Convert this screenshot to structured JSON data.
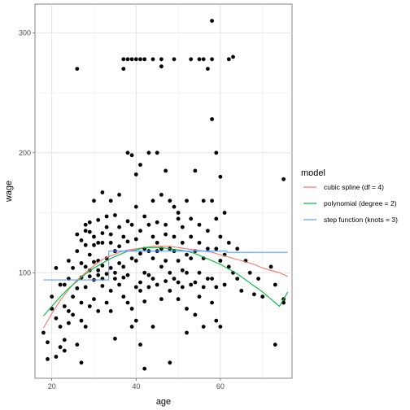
{
  "chart_data": {
    "type": "scatter",
    "xlabel": "age",
    "ylabel": "wage",
    "xlim": [
      16,
      77
    ],
    "ylim": [
      12,
      324
    ],
    "x_ticks": [
      20,
      40,
      60
    ],
    "y_ticks": [
      100,
      200,
      300
    ],
    "grid": true,
    "legend_position": "right",
    "legend_title": "model",
    "points": [
      [
        18,
        50
      ],
      [
        19,
        42
      ],
      [
        19,
        28
      ],
      [
        20,
        70
      ],
      [
        20,
        80
      ],
      [
        21,
        62
      ],
      [
        21,
        30
      ],
      [
        21,
        104
      ],
      [
        22,
        90
      ],
      [
        22,
        55
      ],
      [
        22,
        38
      ],
      [
        23,
        44
      ],
      [
        23,
        90
      ],
      [
        23,
        72
      ],
      [
        23,
        35
      ],
      [
        24,
        68
      ],
      [
        24,
        95
      ],
      [
        24,
        110
      ],
      [
        24,
        58
      ],
      [
        25,
        80
      ],
      [
        25,
        104
      ],
      [
        25,
        65
      ],
      [
        26,
        132
      ],
      [
        26,
        87
      ],
      [
        26,
        118
      ],
      [
        26,
        270
      ],
      [
        26,
        40
      ],
      [
        27,
        96
      ],
      [
        27,
        60
      ],
      [
        27,
        25
      ],
      [
        27,
        108
      ],
      [
        27,
        127
      ],
      [
        27,
        75
      ],
      [
        28,
        55
      ],
      [
        28,
        88
      ],
      [
        28,
        123
      ],
      [
        28,
        135
      ],
      [
        28,
        105
      ],
      [
        28,
        140
      ],
      [
        29,
        97
      ],
      [
        29,
        134
      ],
      [
        29,
        102
      ],
      [
        29,
        115
      ],
      [
        29,
        72
      ],
      [
        29,
        142
      ],
      [
        30,
        94
      ],
      [
        30,
        123
      ],
      [
        30,
        160
      ],
      [
        30,
        78
      ],
      [
        30,
        109
      ],
      [
        30,
        130
      ],
      [
        31,
        102
      ],
      [
        31,
        125
      ],
      [
        31,
        144
      ],
      [
        31,
        98
      ],
      [
        31,
        68
      ],
      [
        31,
        110
      ],
      [
        32,
        106
      ],
      [
        32,
        133
      ],
      [
        32,
        167
      ],
      [
        32,
        89
      ],
      [
        32,
        125
      ],
      [
        32,
        95
      ],
      [
        33,
        112
      ],
      [
        33,
        138
      ],
      [
        33,
        99
      ],
      [
        33,
        147
      ],
      [
        33,
        75
      ],
      [
        34,
        104
      ],
      [
        34,
        160
      ],
      [
        34,
        125
      ],
      [
        34,
        132
      ],
      [
        34,
        85
      ],
      [
        34,
        68
      ],
      [
        35,
        100
      ],
      [
        35,
        148
      ],
      [
        35,
        118
      ],
      [
        35,
        95
      ],
      [
        35,
        118
      ],
      [
        35,
        45
      ],
      [
        36,
        165
      ],
      [
        36,
        108
      ],
      [
        36,
        90
      ],
      [
        36,
        122
      ],
      [
        36,
        138
      ],
      [
        37,
        278
      ],
      [
        37,
        270
      ],
      [
        37,
        130
      ],
      [
        37,
        96
      ],
      [
        37,
        80
      ],
      [
        37,
        105
      ],
      [
        38,
        278
      ],
      [
        38,
        126
      ],
      [
        38,
        200
      ],
      [
        38,
        98
      ],
      [
        38,
        75
      ],
      [
        38,
        143
      ],
      [
        39,
        278
      ],
      [
        39,
        112
      ],
      [
        39,
        198
      ],
      [
        39,
        140
      ],
      [
        39,
        70
      ],
      [
        39,
        55
      ],
      [
        40,
        278
      ],
      [
        40,
        110
      ],
      [
        40,
        128
      ],
      [
        40,
        88
      ],
      [
        40,
        155
      ],
      [
        40,
        182
      ],
      [
        40,
        60
      ],
      [
        41,
        278
      ],
      [
        41,
        116
      ],
      [
        41,
        135
      ],
      [
        41,
        92
      ],
      [
        41,
        190
      ],
      [
        41,
        85
      ],
      [
        41,
        40
      ],
      [
        42,
        278
      ],
      [
        42,
        100
      ],
      [
        42,
        120
      ],
      [
        42,
        147
      ],
      [
        42,
        76
      ],
      [
        42,
        20
      ],
      [
        43,
        200
      ],
      [
        43,
        98
      ],
      [
        43,
        118
      ],
      [
        43,
        140
      ],
      [
        43,
        88
      ],
      [
        44,
        278
      ],
      [
        44,
        112
      ],
      [
        44,
        160
      ],
      [
        44,
        95
      ],
      [
        44,
        130
      ],
      [
        44,
        55
      ],
      [
        45,
        200
      ],
      [
        45,
        118
      ],
      [
        45,
        90
      ],
      [
        45,
        142
      ],
      [
        45,
        125
      ],
      [
        46,
        278
      ],
      [
        46,
        272
      ],
      [
        46,
        105
      ],
      [
        46,
        165
      ],
      [
        46,
        120
      ],
      [
        46,
        78
      ],
      [
        47,
        110
      ],
      [
        47,
        185
      ],
      [
        47,
        93
      ],
      [
        47,
        132
      ],
      [
        47,
        140
      ],
      [
        48,
        120
      ],
      [
        48,
        160
      ],
      [
        48,
        100
      ],
      [
        48,
        85
      ],
      [
        48,
        25
      ],
      [
        49,
        118
      ],
      [
        49,
        278
      ],
      [
        49,
        130
      ],
      [
        49,
        95
      ],
      [
        49,
        155
      ],
      [
        50,
        110
      ],
      [
        50,
        150
      ],
      [
        50,
        92
      ],
      [
        50,
        78
      ],
      [
        50,
        145
      ],
      [
        51,
        125
      ],
      [
        51,
        102
      ],
      [
        51,
        138
      ],
      [
        51,
        88
      ],
      [
        52,
        115
      ],
      [
        52,
        160
      ],
      [
        52,
        100
      ],
      [
        52,
        70
      ],
      [
        52,
        50
      ],
      [
        53,
        112
      ],
      [
        53,
        278
      ],
      [
        53,
        145
      ],
      [
        53,
        90
      ],
      [
        53,
        130
      ],
      [
        54,
        118
      ],
      [
        54,
        185
      ],
      [
        54,
        92
      ],
      [
        54,
        65
      ],
      [
        55,
        278
      ],
      [
        55,
        125
      ],
      [
        55,
        100
      ],
      [
        55,
        80
      ],
      [
        55,
        140
      ],
      [
        56,
        278
      ],
      [
        56,
        112
      ],
      [
        56,
        88
      ],
      [
        56,
        160
      ],
      [
        56,
        55
      ],
      [
        57,
        270
      ],
      [
        57,
        120
      ],
      [
        57,
        95
      ],
      [
        57,
        135
      ],
      [
        58,
        310
      ],
      [
        58,
        228
      ],
      [
        58,
        278
      ],
      [
        58,
        95
      ],
      [
        58,
        160
      ],
      [
        58,
        75
      ],
      [
        59,
        200
      ],
      [
        59,
        145
      ],
      [
        59,
        120
      ],
      [
        59,
        88
      ],
      [
        59,
        60
      ],
      [
        60,
        180
      ],
      [
        60,
        130
      ],
      [
        60,
        110
      ],
      [
        60,
        55
      ],
      [
        61,
        150
      ],
      [
        61,
        115
      ],
      [
        61,
        90
      ],
      [
        62,
        278
      ],
      [
        62,
        125
      ],
      [
        62,
        105
      ],
      [
        63,
        280
      ],
      [
        63,
        100
      ],
      [
        64,
        95
      ],
      [
        64,
        120
      ],
      [
        65,
        85
      ],
      [
        66,
        110
      ],
      [
        67,
        100
      ],
      [
        68,
        82
      ],
      [
        69,
        95
      ],
      [
        70,
        80
      ],
      [
        72,
        105
      ],
      [
        73,
        90
      ],
      [
        73,
        40
      ],
      [
        75,
        178
      ],
      [
        75,
        78
      ],
      [
        75,
        75
      ]
    ],
    "series": [
      {
        "name": "cubic spline (df = 4)",
        "color": "#F8766D",
        "x": [
          18,
          20,
          22,
          24,
          26,
          28,
          30,
          32,
          34,
          36,
          38,
          40,
          42,
          44,
          46,
          48,
          50,
          52,
          54,
          56,
          58,
          60,
          62,
          64,
          66,
          68,
          70,
          72,
          74,
          76
        ],
        "y": [
          54,
          66,
          77,
          86,
          94,
          100,
          106,
          111,
          114,
          117,
          119,
          120,
          121,
          122,
          122,
          122,
          121,
          120,
          119,
          118,
          117,
          115,
          113,
          111,
          109,
          107,
          104,
          102,
          100,
          97
        ]
      },
      {
        "name": "polynomial (degree = 2)",
        "color": "#00BA38",
        "x": [
          18,
          20,
          22,
          24,
          26,
          28,
          30,
          32,
          34,
          36,
          38,
          40,
          42,
          44,
          46,
          48,
          50,
          52,
          54,
          56,
          58,
          60,
          62,
          64,
          66,
          68,
          70,
          72,
          74,
          76
        ],
        "y": [
          64,
          72,
          80,
          87,
          93,
          99,
          104,
          108,
          112,
          115,
          118,
          119,
          121,
          121,
          121,
          120,
          119,
          118,
          116,
          113,
          110,
          107,
          103,
          99,
          94,
          89,
          84,
          78,
          72,
          84
        ]
      },
      {
        "name": "step function (knots = 3)",
        "color": "#619CFF",
        "x": [
          18,
          33.5,
          33.5,
          47,
          47,
          61.5,
          61.5,
          76
        ],
        "y": [
          94,
          94,
          118,
          118,
          118,
          118,
          117,
          117
        ]
      }
    ]
  }
}
